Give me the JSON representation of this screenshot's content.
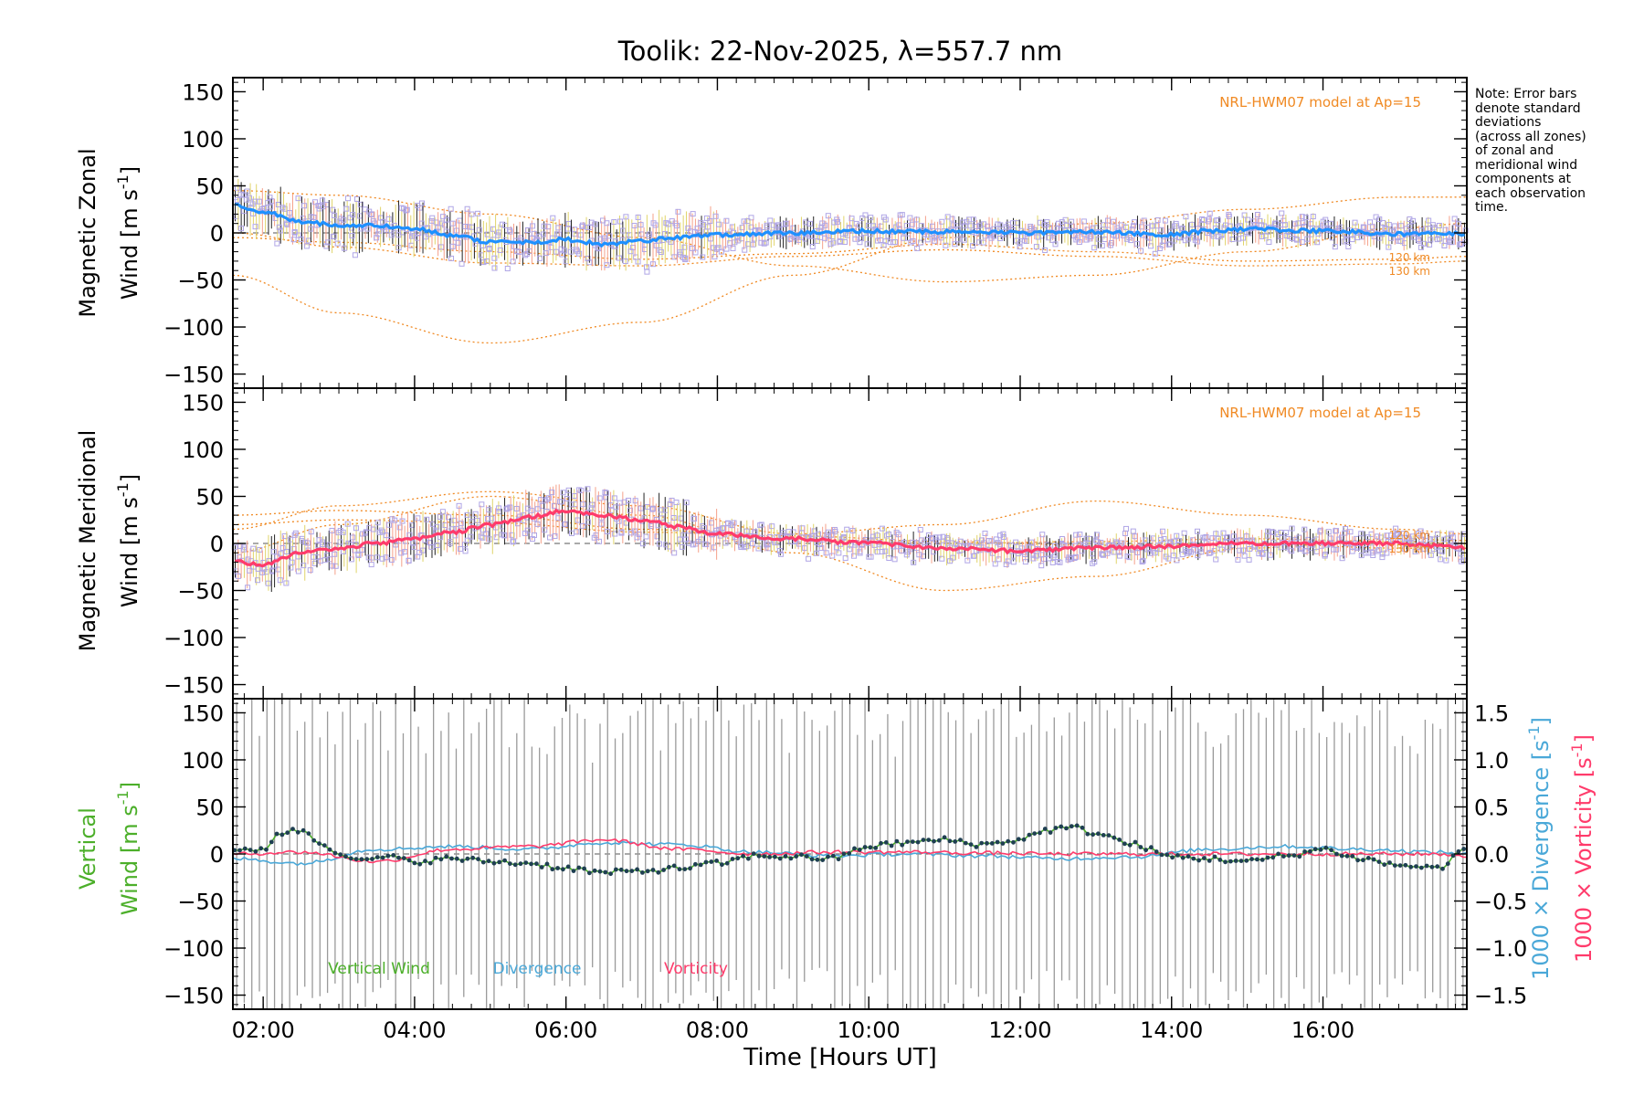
{
  "chart_data": {
    "type": "line",
    "title": "Toolik: 22-Nov-2025, λ=557.7 nm",
    "xlabel": "Time [Hours UT]",
    "x_ticks": [
      "02:00",
      "04:00",
      "06:00",
      "08:00",
      "10:00",
      "12:00",
      "14:00",
      "16:00"
    ],
    "xlim_hours": [
      1.6,
      17.9
    ],
    "note": [
      "Note: Error bars",
      "denote standard",
      "deviations",
      "(across all zones)",
      "of zonal and",
      "meridional wind",
      "components at",
      "each observation",
      "time."
    ],
    "panels": [
      {
        "name": "zonal",
        "ylabel": [
          "Magnetic Zonal",
          "Wind [m s-1]"
        ],
        "ylabel_line1": "Magnetic Zonal",
        "ylabel_unit": "Wind [m s",
        "ylabel_sup": "-1",
        "ylabel_close": "]",
        "ylim": [
          -165,
          165
        ],
        "y_ticks": [
          "150",
          "100",
          "50",
          "0",
          "−50",
          "−100",
          "−150"
        ],
        "y_tick_values": [
          150,
          100,
          50,
          0,
          -50,
          -100,
          -150
        ],
        "model_label": "NRL-HWM07 model at Ap=15",
        "model_alt_labels": [
          "120 km",
          "130 km"
        ],
        "mean_color": "#1e90ff",
        "mean_keypoints": {
          "hours": [
            1.6,
            2.0,
            2.5,
            3.0,
            3.5,
            4.0,
            4.5,
            5.0,
            5.5,
            6.0,
            6.5,
            7.0,
            7.5,
            8.0,
            9.0,
            10.0,
            11.0,
            12.0,
            13.0,
            14.0,
            14.5,
            15.0,
            16.0,
            17.0,
            17.9
          ],
          "values": [
            30,
            22,
            12,
            8,
            8,
            5,
            -3,
            -10,
            -10,
            -7,
            -12,
            -8,
            -5,
            -2,
            0,
            2,
            1,
            0,
            1,
            -2,
            2,
            4,
            2,
            -1,
            -1
          ]
        },
        "error_std": 18,
        "models": [
          {
            "label": "120 km",
            "hours": [
              1.6,
              3.0,
              5.0,
              7.0,
              9.0,
              11.0,
              13.0,
              15.0,
              17.0,
              17.9
            ],
            "values": [
              -5,
              -10,
              -20,
              -28,
              -22,
              -12,
              -20,
              -30,
              -28,
              -25
            ]
          },
          {
            "label": "130 km",
            "hours": [
              1.6,
              3.0,
              5.0,
              7.0,
              9.0,
              11.0,
              13.0,
              15.0,
              17.0,
              17.9
            ],
            "values": [
              0,
              -15,
              -32,
              -35,
              -25,
              -18,
              -25,
              -35,
              -33,
              -30
            ]
          },
          {
            "label": "",
            "hours": [
              1.6,
              3.0,
              5.0,
              7.0,
              9.0,
              11.0,
              13.0,
              15.0,
              17.0,
              17.9
            ],
            "values": [
              -45,
              -85,
              -117,
              -95,
              -45,
              -5,
              10,
              25,
              38,
              38
            ]
          },
          {
            "label": "",
            "hours": [
              1.6,
              3.0,
              5.0,
              7.0,
              9.0,
              11.0,
              13.0,
              15.0,
              17.0,
              17.9
            ],
            "values": [
              45,
              40,
              20,
              -5,
              -35,
              -52,
              -45,
              -20,
              5,
              10
            ]
          }
        ]
      },
      {
        "name": "meridional",
        "ylabel": [
          "Magnetic Meridional",
          "Wind [m s-1]"
        ],
        "ylabel_line1": "Magnetic Meridional",
        "ylabel_unit": "Wind [m s",
        "ylabel_sup": "-1",
        "ylabel_close": "]",
        "ylim": [
          -165,
          165
        ],
        "y_ticks": [
          "150",
          "100",
          "50",
          "0",
          "−50",
          "−100",
          "−150"
        ],
        "y_tick_values": [
          150,
          100,
          50,
          0,
          -50,
          -100,
          -150
        ],
        "model_label": "NRL-HWM07 model at Ap=15",
        "model_alt_labels": [
          "120 km",
          "130 km"
        ],
        "mean_color": "#ff3b6b",
        "mean_keypoints": {
          "hours": [
            1.6,
            2.0,
            2.5,
            3.0,
            3.5,
            4.0,
            4.5,
            5.0,
            5.5,
            6.0,
            6.5,
            7.0,
            7.5,
            8.0,
            9.0,
            10.0,
            11.0,
            12.0,
            13.0,
            14.0,
            15.0,
            16.0,
            17.0,
            17.9
          ],
          "values": [
            -20,
            -22,
            -10,
            -5,
            0,
            5,
            12,
            20,
            28,
            35,
            30,
            25,
            18,
            10,
            5,
            0,
            -5,
            -8,
            -5,
            -3,
            0,
            0,
            0,
            -5
          ]
        },
        "error_std": 18,
        "models": [
          {
            "label": "120 km",
            "hours": [
              1.6,
              3.0,
              5.0,
              7.0,
              9.0,
              11.0,
              13.0,
              15.0,
              17.0,
              17.9
            ],
            "values": [
              30,
              35,
              30,
              15,
              5,
              0,
              2,
              5,
              2,
              0
            ]
          },
          {
            "label": "130 km",
            "hours": [
              1.6,
              3.0,
              5.0,
              7.0,
              9.0,
              11.0,
              13.0,
              15.0,
              17.0,
              17.9
            ],
            "values": [
              20,
              25,
              22,
              12,
              8,
              2,
              -2,
              0,
              -5,
              -5
            ]
          },
          {
            "label": "",
            "hours": [
              1.6,
              3.0,
              5.0,
              7.0,
              9.0,
              11.0,
              13.0,
              15.0,
              17.0,
              17.9
            ],
            "values": [
              -10,
              20,
              50,
              30,
              -10,
              -50,
              -35,
              -5,
              5,
              3
            ]
          },
          {
            "label": "",
            "hours": [
              1.6,
              3.0,
              5.0,
              7.0,
              9.0,
              11.0,
              13.0,
              15.0,
              17.0,
              17.9
            ],
            "values": [
              15,
              40,
              55,
              40,
              10,
              20,
              45,
              30,
              15,
              10
            ]
          }
        ]
      },
      {
        "name": "vertical",
        "ylabel": [
          "Vertical",
          "Wind [m s-1]"
        ],
        "ylabel_line1": "Vertical",
        "ylabel_unit": "Wind [m s",
        "ylabel_sup": "-1",
        "ylabel_close": "]",
        "ylim": [
          -165,
          165
        ],
        "y_ticks": [
          "150",
          "100",
          "50",
          "0",
          "−50",
          "−100",
          "−150"
        ],
        "y_tick_values": [
          150,
          100,
          50,
          0,
          -50,
          -100,
          -150
        ],
        "right_ylabel_div": "1000 × Divergence [s-1]",
        "right_ylabel_div_text": "1000 × Divergence [s",
        "right_ylabel_vort_text": "1000 × Vorticity [s",
        "right_ylabel_sup": "-1",
        "right_ylabel_close": "]",
        "right_ylabel_vort": "1000 × Vorticity [s-1]",
        "right_ylim": [
          -1.65,
          1.65
        ],
        "right_y_ticks": [
          "1.5",
          "1.0",
          "0.5",
          "0.0",
          "−0.5",
          "−1.0",
          "−1.5"
        ],
        "right_y_tick_values": [
          1.5,
          1.0,
          0.5,
          0.0,
          -0.5,
          -1.0,
          -1.5
        ],
        "legend": [
          {
            "label": "Vertical Wind",
            "color": "#4caf2a"
          },
          {
            "label": "Divergence",
            "color": "#4aa8d8"
          },
          {
            "label": "Vorticity",
            "color": "#ff3b6b"
          }
        ],
        "vertical_keypoints": {
          "hours": [
            1.6,
            2.0,
            2.2,
            2.5,
            2.8,
            3.0,
            3.3,
            3.6,
            4.0,
            4.5,
            5.0,
            5.5,
            6.0,
            6.5,
            7.0,
            7.5,
            8.0,
            8.5,
            9.0,
            9.5,
            10.0,
            10.5,
            11.0,
            11.5,
            12.0,
            12.3,
            12.7,
            13.0,
            13.5,
            14.0,
            14.5,
            15.0,
            15.5,
            16.0,
            16.5,
            17.0,
            17.5,
            17.9
          ],
          "values": [
            2,
            5,
            22,
            25,
            10,
            2,
            -8,
            -3,
            -8,
            -5,
            -8,
            -10,
            -15,
            -20,
            -18,
            -15,
            -10,
            -2,
            -3,
            -5,
            8,
            12,
            15,
            10,
            15,
            25,
            28,
            22,
            10,
            -3,
            -5,
            -8,
            -2,
            5,
            -5,
            -12,
            -15,
            5
          ]
        },
        "divergence_keypoints": {
          "hours": [
            1.6,
            2.5,
            3.5,
            4.5,
            5.5,
            6.5,
            7.5,
            8.5,
            9.5,
            10.5,
            11.5,
            12.5,
            13.5,
            14.5,
            15.5,
            16.5,
            17.5,
            17.9
          ],
          "values": [
            -0.05,
            -0.1,
            0.05,
            0.08,
            0.05,
            0.12,
            0.1,
            0.02,
            -0.02,
            0.0,
            -0.02,
            -0.05,
            -0.03,
            0.05,
            0.08,
            0.05,
            0.02,
            0.0
          ]
        },
        "vorticity_keypoints": {
          "hours": [
            1.6,
            2.5,
            3.5,
            4.5,
            5.5,
            6.5,
            7.5,
            8.5,
            9.5,
            10.5,
            11.5,
            12.5,
            13.5,
            14.5,
            15.5,
            16.5,
            17.5,
            17.9
          ],
          "values": [
            0.0,
            0.02,
            -0.08,
            0.05,
            0.08,
            0.15,
            0.05,
            0.0,
            0.02,
            0.02,
            0.01,
            0.0,
            0.0,
            0.0,
            0.0,
            0.0,
            0.0,
            -0.02
          ]
        }
      }
    ]
  },
  "colors": {
    "model": "#f08a24",
    "scatter": "#b0a6e6",
    "error_bar": "#222222",
    "vertical_error": "#9a9a9a",
    "vertical_dots": "#1f3f52"
  }
}
